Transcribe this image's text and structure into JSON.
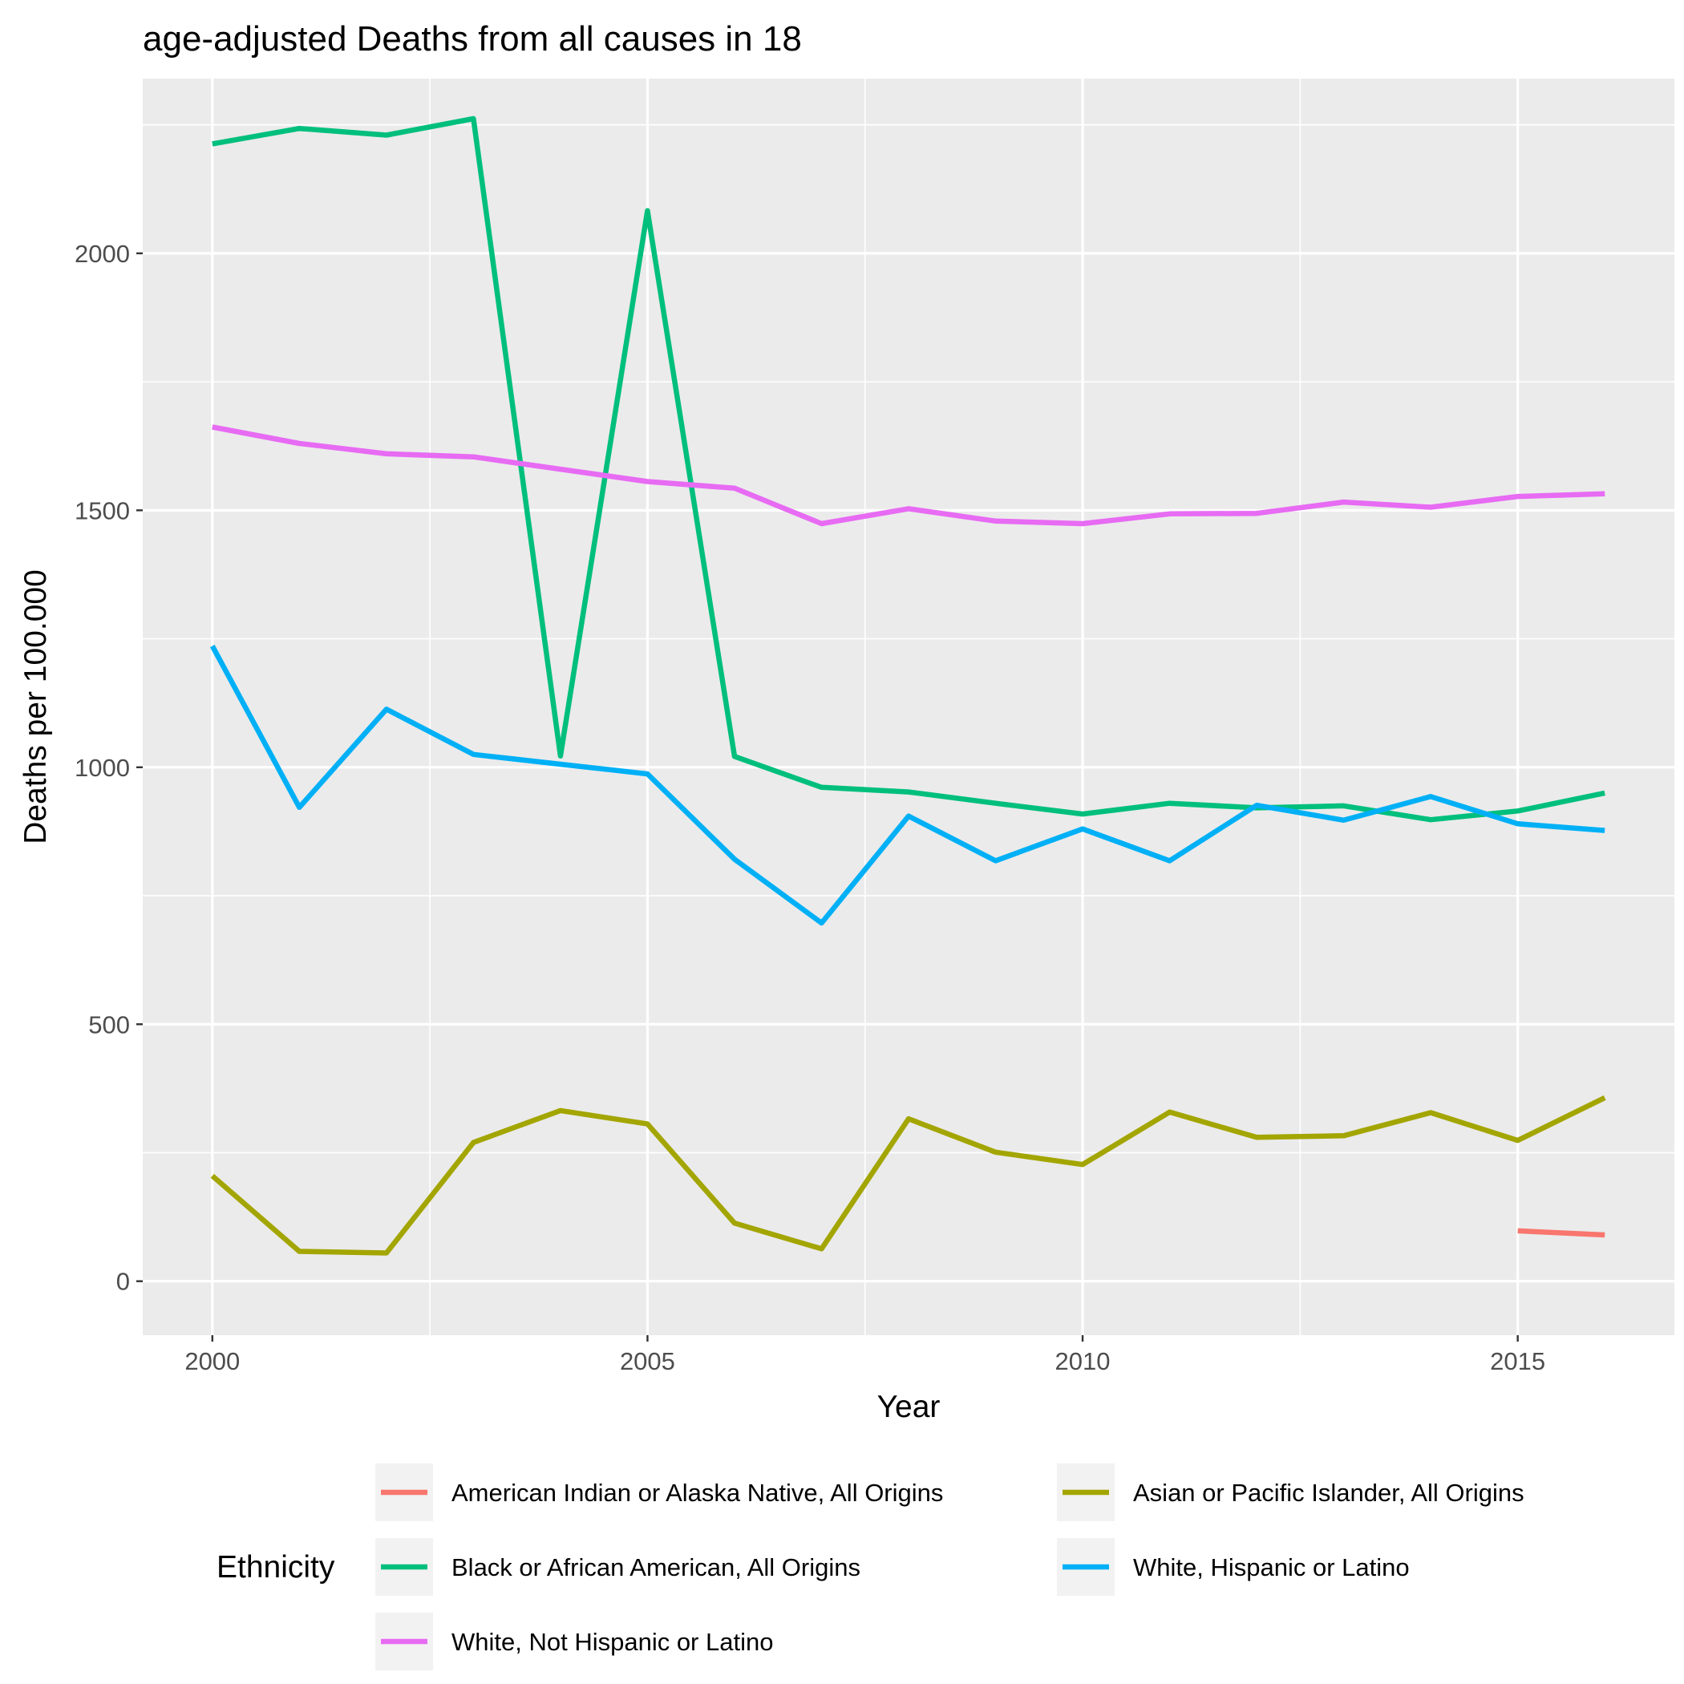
{
  "chart_data": {
    "type": "line",
    "title": "age-adjusted Deaths from all causes in 18",
    "xlabel": "Year",
    "ylabel": "Deaths per 100.000",
    "xlim": [
      1999.2,
      2016.8
    ],
    "ylim": [
      -105,
      2340
    ],
    "x_ticks": [
      2000,
      2005,
      2010,
      2015
    ],
    "x_tick_labels": [
      "2000",
      "2005",
      "2010",
      "2015"
    ],
    "x_minor_ticks": [
      2002.5,
      2007.5,
      2012.5
    ],
    "y_ticks": [
      0,
      500,
      1000,
      1500,
      2000
    ],
    "y_tick_labels": [
      "0",
      "500",
      "1000",
      "1500",
      "2000"
    ],
    "y_minor_ticks": [
      250,
      750,
      1250,
      1750,
      2250
    ],
    "grid": true,
    "panel_background": "#ebebeb",
    "grid_color": "#ffffff",
    "legend": {
      "title": "Ethnicity",
      "position": "bottom"
    },
    "series": [
      {
        "name": "American Indian or Alaska Native, All Origins",
        "color": "#F8766D",
        "x": [
          2015,
          2016
        ],
        "values": [
          98,
          90
        ]
      },
      {
        "name": "Asian or Pacific Islander, All Origins",
        "color": "#A3A500",
        "x": [
          2000,
          2001,
          2002,
          2003,
          2004,
          2005,
          2006,
          2007,
          2008,
          2009,
          2010,
          2011,
          2012,
          2013,
          2014,
          2015,
          2016
        ],
        "values": [
          205,
          58,
          55,
          270,
          332,
          306,
          113,
          63,
          316,
          251,
          227,
          329,
          280,
          283,
          328,
          274,
          357
        ]
      },
      {
        "name": "Black or African American, All Origins",
        "color": "#00BF7D",
        "x": [
          2000,
          2001,
          2002,
          2003,
          2004,
          2005,
          2006,
          2007,
          2008,
          2009,
          2010,
          2011,
          2012,
          2013,
          2014,
          2015,
          2016
        ],
        "values": [
          2213,
          2243,
          2230,
          2262,
          1022,
          2083,
          1021,
          961,
          952,
          930,
          909,
          930,
          921,
          925,
          898,
          915,
          950
        ]
      },
      {
        "name": "White, Hispanic or Latino",
        "color": "#00B0F6",
        "x": [
          2000,
          2001,
          2002,
          2003,
          2004,
          2005,
          2006,
          2007,
          2008,
          2009,
          2010,
          2011,
          2012,
          2013,
          2014,
          2015,
          2016
        ],
        "values": [
          1236,
          922,
          1113,
          1025,
          1006,
          987,
          821,
          697,
          905,
          818,
          880,
          818,
          926,
          897,
          943,
          890,
          877
        ]
      },
      {
        "name": "White, Not Hispanic or Latino",
        "color": "#E76BF3",
        "x": [
          2000,
          2001,
          2002,
          2003,
          2004,
          2005,
          2006,
          2007,
          2008,
          2009,
          2010,
          2011,
          2012,
          2013,
          2014,
          2015,
          2016
        ],
        "values": [
          1662,
          1630,
          1610,
          1604,
          1580,
          1556,
          1543,
          1474,
          1503,
          1479,
          1474,
          1493,
          1494,
          1516,
          1506,
          1527,
          1532
        ]
      }
    ]
  }
}
